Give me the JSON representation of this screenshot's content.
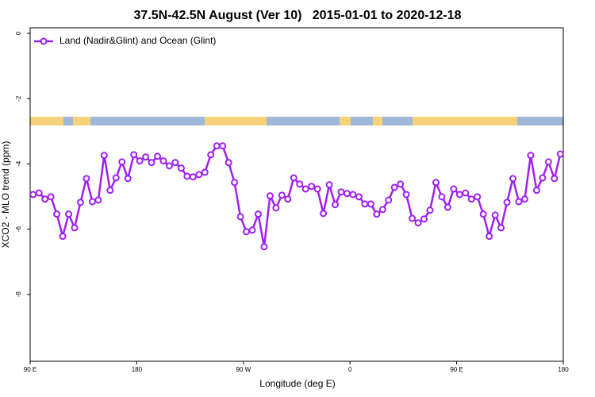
{
  "chart_data": {
    "type": "line",
    "title": "37.5N-42.5N August (Ver 10)   2015-01-01 to 2020-12-18",
    "x_label": "Longitude (deg E)",
    "y_label": "XCO2 - MLO trend (ppm)",
    "xlim": [
      90,
      540
    ],
    "ylim": [
      -10.05,
      0.17
    ],
    "xticks": [
      {
        "value": 90,
        "label": "90 E"
      },
      180,
      {
        "value": 270,
        "label": "90 W"
      },
      {
        "value": 360,
        "label": "0"
      },
      {
        "value": 450,
        "label": "90 E"
      },
      {
        "value": 540,
        "label": "180"
      }
    ],
    "yticks": [
      0,
      -2,
      -4,
      -6,
      -8
    ],
    "legend": "top-left",
    "x": [
      92.5,
      97.5,
      102.5,
      107.5,
      112.5,
      117.5,
      122.5,
      127.5,
      132.5,
      137.5,
      142.5,
      147.5,
      152.5,
      157.5,
      162.5,
      167.5,
      172.5,
      177.5,
      182.5,
      187.5,
      192.5,
      197.5,
      202.5,
      207.5,
      212.5,
      217.5,
      222.5,
      227.5,
      232.5,
      237.5,
      242.5,
      247.5,
      252.5,
      257.5,
      262.5,
      267.5,
      272.5,
      277.5,
      282.5,
      287.5,
      292.5,
      297.5,
      302.5,
      307.5,
      312.5,
      317.5,
      322.5,
      327.5,
      332.5,
      337.5,
      342.5,
      347.5,
      352.5,
      357.5,
      362.5,
      367.5,
      372.5,
      377.5,
      382.5,
      387.5,
      392.5,
      397.5,
      402.5,
      407.5,
      412.5,
      417.5,
      422.5,
      427.5,
      432.5,
      437.5,
      442.5,
      447.5,
      452.5,
      457.5,
      462.5,
      467.5,
      472.5,
      477.5,
      482.5,
      487.5,
      492.5,
      497.5,
      502.5,
      507.5,
      512.5,
      517.5,
      522.5,
      527.5,
      532.5,
      537.5
    ],
    "series": [
      {
        "name": "Land (Nadir&Glint) and Ocean (Glint)",
        "color": "#a020f0",
        "values": [
          -4.94,
          -4.89,
          -5.08,
          -5.01,
          -5.54,
          -6.22,
          -5.54,
          -5.96,
          -5.18,
          -4.45,
          -5.16,
          -5.11,
          -3.74,
          -4.81,
          -4.43,
          -3.94,
          -4.45,
          -3.72,
          -3.91,
          -3.79,
          -3.96,
          -3.77,
          -3.91,
          -4.06,
          -3.96,
          -4.13,
          -4.38,
          -4.4,
          -4.33,
          -4.26,
          -3.72,
          -3.45,
          -3.45,
          -3.96,
          -4.57,
          -5.62,
          -6.08,
          -6.03,
          -5.54,
          -6.54,
          -4.98,
          -5.35,
          -4.96,
          -5.08,
          -4.43,
          -4.62,
          -4.77,
          -4.69,
          -4.77,
          -5.52,
          -4.64,
          -5.25,
          -4.86,
          -4.91,
          -4.94,
          -5.01,
          -5.23,
          -5.23,
          -5.54,
          -5.4,
          -5.11,
          -4.72,
          -4.62,
          -4.94,
          -5.67,
          -5.81,
          -5.69,
          -5.42,
          -4.57,
          -5.01,
          -5.33,
          -4.77,
          -4.94,
          -4.89,
          -5.08,
          -5.01,
          -5.54,
          -6.22,
          -5.57,
          -5.96,
          -5.18,
          -4.45,
          -5.16,
          -5.08,
          -3.74,
          -4.81,
          -4.43,
          -3.94,
          -4.45,
          -3.7
        ]
      }
    ]
  }
}
